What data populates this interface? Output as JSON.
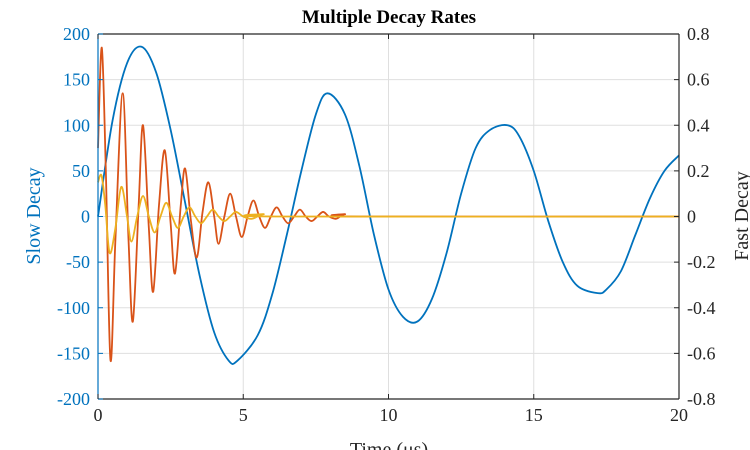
{
  "chart_data": {
    "type": "line",
    "title": "Multiple Decay Rates",
    "xlabel": "Time (μs)",
    "ylabel_left": "Slow Decay",
    "ylabel_right": "Fast Decay",
    "xlim": [
      0,
      20
    ],
    "ylim_left": [
      -200,
      200
    ],
    "ylim_right": [
      -0.8,
      0.8
    ],
    "x_ticks": [
      0,
      5,
      10,
      15,
      20
    ],
    "y_ticks_left": [
      -200,
      -150,
      -100,
      -50,
      0,
      50,
      100,
      150,
      200
    ],
    "y_ticks_right": [
      -0.8,
      -0.6,
      -0.4,
      -0.2,
      0,
      0.2,
      0.4,
      0.6,
      0.8
    ],
    "grid": true,
    "series": [
      {
        "axis": "left",
        "color": "#0072BD",
        "points": [
          [
            0,
            0
          ],
          [
            0.5,
            105
          ],
          [
            1,
            168
          ],
          [
            1.5,
            186
          ],
          [
            2,
            158
          ],
          [
            2.5,
            95
          ],
          [
            3,
            15
          ],
          [
            3.5,
            -65
          ],
          [
            4,
            -127
          ],
          [
            4.5,
            -158
          ],
          [
            4.8,
            -158
          ],
          [
            5.5,
            -130
          ],
          [
            6,
            -85
          ],
          [
            6.5,
            -20
          ],
          [
            7,
            50
          ],
          [
            7.5,
            112
          ],
          [
            7.9,
            135
          ],
          [
            8.5,
            112
          ],
          [
            9,
            55
          ],
          [
            9.5,
            -20
          ],
          [
            10,
            -80
          ],
          [
            10.5,
            -110
          ],
          [
            11,
            -115
          ],
          [
            11.5,
            -90
          ],
          [
            12,
            -40
          ],
          [
            12.5,
            25
          ],
          [
            13,
            75
          ],
          [
            13.5,
            95
          ],
          [
            14.1,
            100
          ],
          [
            14.5,
            88
          ],
          [
            15,
            50
          ],
          [
            15.5,
            -5
          ],
          [
            16,
            -50
          ],
          [
            16.5,
            -76
          ],
          [
            17.2,
            -84
          ],
          [
            17.5,
            -80
          ],
          [
            18,
            -60
          ],
          [
            18.5,
            -20
          ],
          [
            19,
            20
          ],
          [
            19.5,
            50
          ],
          [
            20,
            67
          ]
        ]
      },
      {
        "axis": "right",
        "color": "#D95319",
        "points": [
          [
            0,
            0.3
          ],
          [
            0.13,
            0.74
          ],
          [
            0.27,
            0.2
          ],
          [
            0.43,
            -0.63
          ],
          [
            0.6,
            -0.1
          ],
          [
            0.85,
            0.54
          ],
          [
            1.05,
            -0.1
          ],
          [
            1.2,
            -0.46
          ],
          [
            1.4,
            0.05
          ],
          [
            1.55,
            0.4
          ],
          [
            1.75,
            -0.05
          ],
          [
            1.9,
            -0.33
          ],
          [
            2.1,
            0.05
          ],
          [
            2.3,
            0.29
          ],
          [
            2.5,
            -0.03
          ],
          [
            2.65,
            -0.25
          ],
          [
            2.85,
            0.05
          ],
          [
            3.0,
            0.21
          ],
          [
            3.2,
            -0.02
          ],
          [
            3.4,
            -0.18
          ],
          [
            3.6,
            0.02
          ],
          [
            3.8,
            0.15
          ],
          [
            4.0,
            0.0
          ],
          [
            4.15,
            -0.12
          ],
          [
            4.35,
            0.0
          ],
          [
            4.55,
            0.1
          ],
          [
            4.75,
            0.0
          ],
          [
            4.95,
            -0.09
          ],
          [
            5.15,
            0.0
          ],
          [
            5.35,
            0.07
          ],
          [
            5.55,
            0.0
          ],
          [
            5.75,
            -0.05
          ],
          [
            5.95,
            0.0
          ],
          [
            6.15,
            0.04
          ],
          [
            6.35,
            0.0
          ],
          [
            6.55,
            -0.03
          ],
          [
            6.75,
            0.0
          ],
          [
            6.95,
            0.03
          ],
          [
            7.15,
            0.0
          ],
          [
            7.35,
            -0.02
          ],
          [
            7.55,
            0.0
          ],
          [
            7.75,
            0.02
          ],
          [
            7.95,
            0.0
          ],
          [
            8.2,
            -0.01
          ],
          [
            8.5,
            0.01
          ],
          [
            9.0,
            0.0
          ],
          [
            20,
            0.0
          ]
        ]
      },
      {
        "axis": "right",
        "color": "#EDB120",
        "points": [
          [
            0,
            0.15
          ],
          [
            0.12,
            0.18
          ],
          [
            0.25,
            0.05
          ],
          [
            0.4,
            -0.16
          ],
          [
            0.6,
            -0.05
          ],
          [
            0.8,
            0.13
          ],
          [
            1.0,
            0.0
          ],
          [
            1.15,
            -0.11
          ],
          [
            1.35,
            0.0
          ],
          [
            1.55,
            0.09
          ],
          [
            1.75,
            0.0
          ],
          [
            1.95,
            -0.07
          ],
          [
            2.15,
            0.0
          ],
          [
            2.35,
            0.06
          ],
          [
            2.55,
            0.0
          ],
          [
            2.75,
            -0.05
          ],
          [
            2.95,
            0.0
          ],
          [
            3.15,
            0.04
          ],
          [
            3.35,
            0.0
          ],
          [
            3.55,
            -0.03
          ],
          [
            3.75,
            0.0
          ],
          [
            3.95,
            0.03
          ],
          [
            4.15,
            0.0
          ],
          [
            4.35,
            -0.02
          ],
          [
            4.55,
            0.0
          ],
          [
            4.75,
            0.02
          ],
          [
            5.0,
            0.0
          ],
          [
            5.3,
            -0.01
          ],
          [
            5.7,
            0.01
          ],
          [
            6.2,
            0.0
          ],
          [
            20,
            0.0
          ]
        ]
      }
    ]
  },
  "colors": {
    "left_axis": "#0072BD",
    "right_axis": "#262626",
    "grid": "#DFDFDF"
  }
}
